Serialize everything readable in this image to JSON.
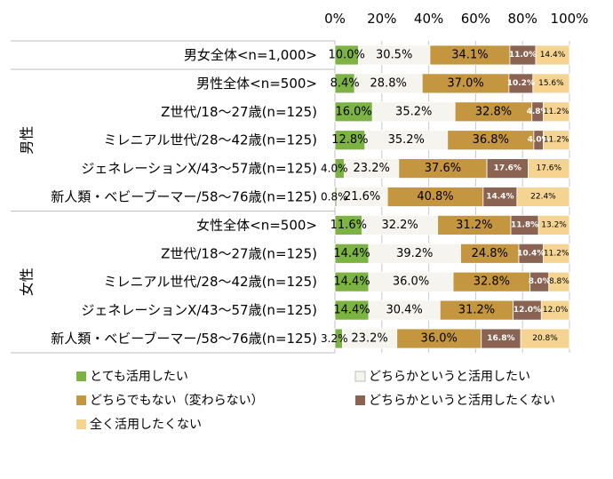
{
  "chart_data": {
    "type": "bar",
    "stacked": "100%",
    "orientation": "horizontal",
    "x_ticks": [
      "0%",
      "20%",
      "40%",
      "60%",
      "80%",
      "100%"
    ],
    "xlim": [
      0,
      100
    ],
    "legend_position": "bottom",
    "groups": [
      {
        "label": "",
        "rows": [
          0
        ]
      },
      {
        "label": "男性",
        "rows": [
          1,
          2,
          3,
          4,
          5
        ]
      },
      {
        "label": "女性",
        "rows": [
          6,
          7,
          8,
          9,
          10
        ]
      }
    ],
    "categories": [
      "男女全体<n=1,000>",
      "男性全体<n=500>",
      "Z世代/18～27歳(n=125)",
      "ミレニアル世代/28～42歳(n=125)",
      "ジェネレーションX/43～57歳(n=125)",
      "新人類・ベビーブーマー/58～76歳(n=125)",
      "女性全体<n=500>",
      "Z世代/18～27歳(n=125)",
      "ミレニアル世代/28～42歳(n=125)",
      "ジェネレーションX/43～57歳(n=125)",
      "新人類・ベビーブーマー/58～76歳(n=125)"
    ],
    "series": [
      {
        "name": "とても活用したい",
        "color": "#7cb342",
        "values": [
          10.0,
          8.4,
          16.0,
          12.8,
          4.0,
          0.8,
          11.6,
          14.4,
          14.4,
          14.4,
          3.2
        ],
        "labels": [
          "10.0%",
          "8.4%",
          "16.0%",
          "12.8%",
          "4.0%",
          "0.8%",
          "11.6%",
          "14.4%",
          "14.4%",
          "14.4%",
          "3.2%"
        ]
      },
      {
        "name": "どちらかというと活用したい",
        "color": "#f5f4ee",
        "values": [
          30.5,
          28.8,
          35.2,
          35.2,
          23.2,
          21.6,
          32.2,
          39.2,
          36.0,
          30.4,
          23.2
        ],
        "labels": [
          "30.5%",
          "28.8%",
          "35.2%",
          "35.2%",
          "23.2%",
          "21.6%",
          "32.2%",
          "39.2%",
          "36.0%",
          "30.4%",
          "23.2%"
        ]
      },
      {
        "name": "どちらでもない（変わらない）",
        "color": "#c4963f",
        "values": [
          34.1,
          37.0,
          32.8,
          36.8,
          37.6,
          40.8,
          31.2,
          24.8,
          32.8,
          31.2,
          36.0
        ],
        "labels": [
          "34.1%",
          "37.0%",
          "32.8%",
          "36.8%",
          "37.6%",
          "40.8%",
          "31.2%",
          "24.8%",
          "32.8%",
          "31.2%",
          "36.0%"
        ]
      },
      {
        "name": "どちらかというと活用したくない",
        "color": "#8a6352",
        "values": [
          11.0,
          10.2,
          4.8,
          4.0,
          17.6,
          14.4,
          11.8,
          10.4,
          8.0,
          12.0,
          16.8
        ],
        "labels": [
          "11.0%",
          "10.2%",
          "4.8%",
          "4.0%",
          "17.6%",
          "14.4%",
          "11.8%",
          "10.4%",
          "8.0%",
          "12.0%",
          "16.8%"
        ]
      },
      {
        "name": "全く活用したくない",
        "color": "#f5d491",
        "values": [
          14.4,
          15.6,
          11.2,
          11.2,
          17.6,
          22.4,
          13.2,
          11.2,
          8.8,
          12.0,
          20.8
        ],
        "labels": [
          "14.4%",
          "15.6%",
          "11.2%",
          "11.2%",
          "17.6%",
          "22.4%",
          "13.2%",
          "11.2%",
          "8.8%",
          "12.0%",
          "20.8%"
        ]
      }
    ]
  }
}
